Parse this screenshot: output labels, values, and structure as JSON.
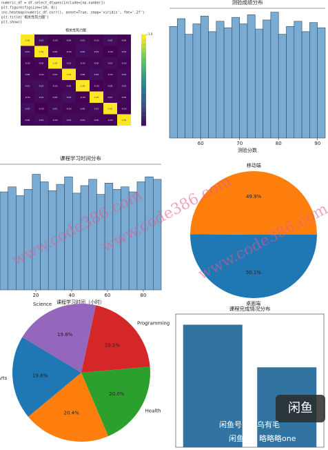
{
  "code": [
    "numeric_df = df.select_dtypes(include=[np.number])",
    "plt.figure(figsize=(10, 8))",
    "sns.heatmap(numeric_df.corr(), annot=True, cmap='viridis', fmt='.2f')",
    "plt.title('相关性热力图')",
    "plt.show()"
  ],
  "chart_data": [
    {
      "type": "heatmap",
      "title": "相关性热力图",
      "categories": [
        null,
        null,
        null,
        null,
        null,
        null,
        null,
        null
      ],
      "values": [
        [
          1,
          0.01,
          -0.02,
          0,
          0.01,
          -0.01,
          0.02,
          0
        ],
        [
          0.01,
          1,
          0,
          -0.01,
          0.02,
          0.01,
          -0.02,
          0.01
        ],
        [
          -0.02,
          0,
          1,
          0.01,
          -0.01,
          0,
          0.01,
          -0.01
        ],
        [
          0,
          -0.01,
          0.01,
          1,
          0,
          0.02,
          -0.01,
          0.01
        ],
        [
          0.01,
          0.02,
          -0.01,
          0,
          1,
          -0.02,
          0,
          0.01
        ],
        [
          -0.01,
          0.01,
          0,
          0.02,
          -0.02,
          1,
          0.01,
          0
        ],
        [
          0.02,
          -0.02,
          0.01,
          -0.01,
          0,
          0.01,
          1,
          -0.01
        ],
        [
          0,
          0.01,
          -0.01,
          0.01,
          0.01,
          0,
          -0.01,
          1
        ]
      ],
      "value_labels": [
        [
          "1.00",
          "0.01",
          "-0.02",
          "0.00",
          "0.01",
          "-0.01",
          "0.02",
          "0.00"
        ],
        [
          "0.01",
          "1.00",
          "0.00",
          "-0.01",
          "0.02",
          "0.01",
          "-0.02",
          "0.01"
        ],
        [
          "-0.02",
          "0.00",
          "1.00",
          "0.01",
          "-0.01",
          "0.00",
          "0.01",
          "-0.01"
        ],
        [
          "0.00",
          "-0.01",
          "0.01",
          "1.00",
          "0.00",
          "0.02",
          "-0.01",
          "0.01"
        ],
        [
          "0.01",
          "0.02",
          "-0.01",
          "0.00",
          "1.00",
          "-0.02",
          "0.00",
          "0.01"
        ],
        [
          "-0.01",
          "0.01",
          "0.00",
          "0.02",
          "-0.02",
          "1.00",
          "0.01",
          "0.00"
        ],
        [
          "0.02",
          "-0.02",
          "0.01",
          "-0.01",
          "0.00",
          "0.01",
          "1.00",
          "-0.01"
        ],
        [
          "0.00",
          "0.01",
          "-0.01",
          "0.01",
          "0.01",
          "0.00",
          "-0.01",
          "1.00"
        ]
      ],
      "zlim": [
        -0.02,
        1
      ],
      "zticks": [
        {
          "value": 1,
          "label": "1.0"
        }
      ],
      "colormap": "viridis"
    },
    {
      "type": "histogram",
      "title": "测验成绩分布",
      "xlabel": "测验分数",
      "bins": [
        52,
        54,
        56,
        58,
        60,
        62,
        64,
        66,
        68,
        70,
        72,
        74,
        76,
        78,
        80,
        82,
        84,
        86,
        88,
        90,
        92
      ],
      "values": [
        86,
        92,
        80,
        88,
        94,
        82,
        90,
        85,
        93,
        88,
        95,
        84,
        91,
        97,
        80,
        86,
        90,
        82,
        89,
        85
      ],
      "ylim": [
        0,
        100
      ],
      "xlim": [
        52,
        92
      ],
      "xticks": [
        60,
        70,
        80,
        90
      ],
      "color": "#7aabd2"
    },
    {
      "type": "histogram",
      "title": "课程学习时间分布",
      "xlabel": "课程学习时间（小时）",
      "bins": [
        0,
        4.5,
        9,
        13.5,
        18,
        22.5,
        27,
        31.5,
        36,
        40.5,
        45,
        49.5,
        54,
        58.5,
        63,
        67.5,
        72,
        76.5,
        81,
        85.5,
        90
      ],
      "values": [
        78,
        82,
        75,
        80,
        92,
        86,
        79,
        84,
        90,
        77,
        83,
        88,
        76,
        85,
        80,
        82,
        78,
        86,
        90,
        88
      ],
      "ylim": [
        0,
        100
      ],
      "xlim": [
        0,
        90
      ],
      "xticks": [
        20,
        40,
        60,
        80
      ],
      "color": "#7aabd2"
    },
    {
      "type": "pie",
      "categories": [
        "桌面端",
        "移动端"
      ],
      "values": [
        50.1,
        49.9
      ],
      "value_labels": [
        "50.1%",
        "49.9%"
      ],
      "colors": [
        "#1f77b4",
        "#ff7f0e"
      ]
    },
    {
      "type": "pie",
      "categories": [
        "Science",
        "Programming",
        "Health",
        null,
        "Arts"
      ],
      "values": [
        19.8,
        20.2,
        20.0,
        20.4,
        19.6
      ],
      "value_labels": [
        "19.8%",
        "20.2%",
        "20.0%",
        "20.4%",
        "19.6%"
      ],
      "colors": [
        "#9467bd",
        "#d62728",
        "#2ca02c",
        "#ff7f0e",
        "#1f77b4"
      ]
    },
    {
      "type": "bar",
      "title": "课程完成情况分布",
      "categories": [
        null,
        null
      ],
      "values": [
        0.92,
        0.6
      ],
      "ylim": [
        0,
        1
      ],
      "color": "#3274a1"
    }
  ],
  "watermarks": [
    "www.code386.com",
    "www.code386.com",
    "www.code386.com"
  ],
  "badge": "闲鱼",
  "footer": [
    "闲鱼号：小乌有毛",
    "闲鱼号：略略略one"
  ]
}
